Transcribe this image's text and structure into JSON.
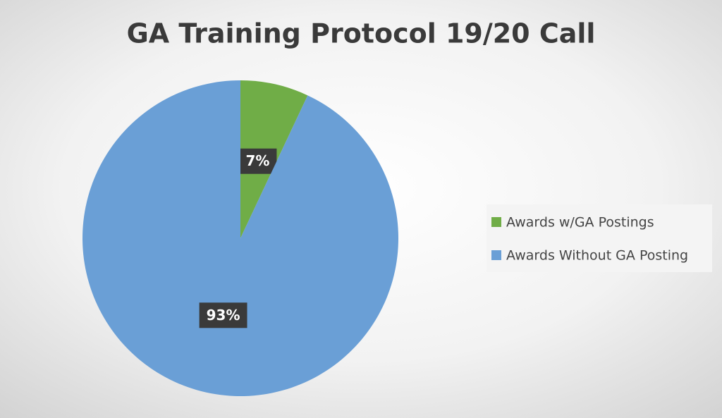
{
  "chart_data": {
    "type": "pie",
    "title": "GA Training Protocol 19/20 Call",
    "categories": [
      "Awards w/GA Postings",
      "Awards Without GA Posting"
    ],
    "values": [
      7,
      93
    ],
    "value_labels": [
      "7%",
      "93%"
    ],
    "colors": [
      "#70ad47",
      "#6a9fd6"
    ],
    "legend": "right"
  }
}
